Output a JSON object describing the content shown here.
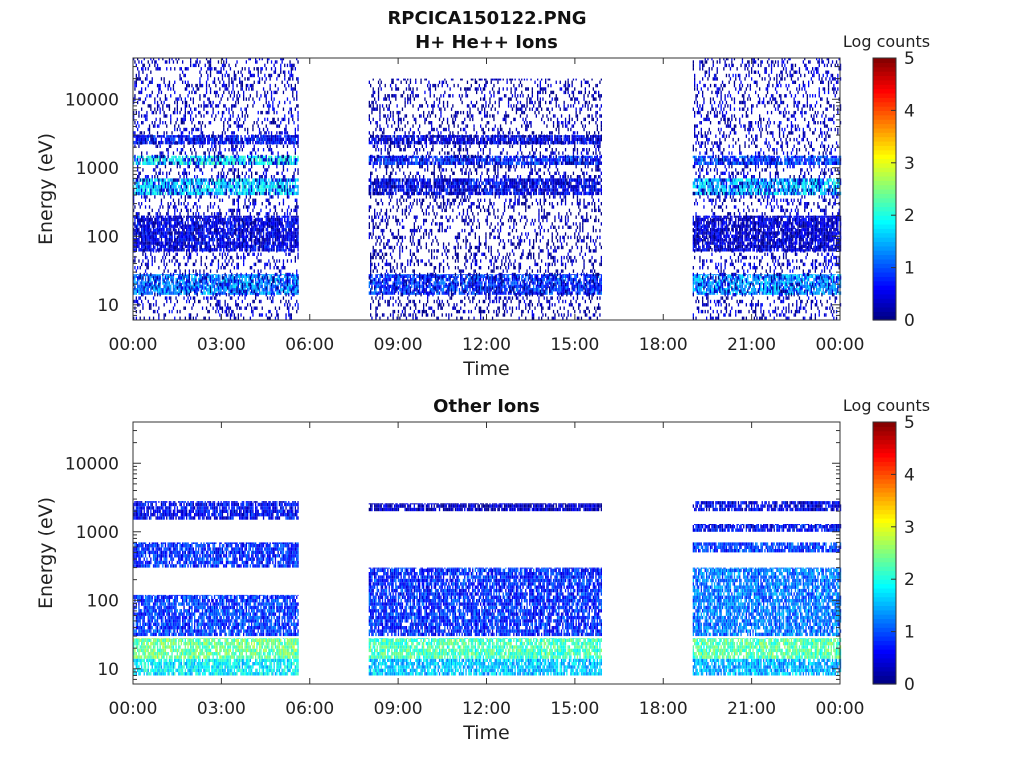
{
  "figure": {
    "filename_title": "RPCICA150122.PNG"
  },
  "chart_data": [
    {
      "type": "heatmap",
      "title": "H+ He++ Ions",
      "xlabel": "Time",
      "ylabel": "Energy (eV)",
      "x_ticks": [
        "00:00",
        "03:00",
        "06:00",
        "09:00",
        "12:00",
        "15:00",
        "18:00",
        "21:00",
        "00:00"
      ],
      "x_range_hours": [
        0,
        24
      ],
      "y_scale": "log",
      "y_ticks": [
        10,
        100,
        1000,
        10000
      ],
      "y_tick_labels": [
        "10",
        "100",
        "1000",
        "10000"
      ],
      "y_range": [
        6,
        40000
      ],
      "colorbar": {
        "label": "Log counts",
        "range": [
          0,
          5
        ],
        "ticks": [
          "0",
          "1",
          "2",
          "3",
          "4",
          "5"
        ],
        "colormap": "jet"
      },
      "data_gaps_hours": [
        [
          5.6,
          8.0
        ],
        [
          15.9,
          19.0
        ]
      ],
      "intervals": [
        {
          "start_hour": 0.0,
          "end_hour": 5.6,
          "bands": [
            {
              "e_min": 14,
              "e_max": 28,
              "level": 1.3
            },
            {
              "e_min": 400,
              "e_max": 700,
              "level": 1.7
            },
            {
              "e_min": 1100,
              "e_max": 1500,
              "level": 1.9
            },
            {
              "e_min": 2200,
              "e_max": 3000,
              "level": 0.7
            },
            {
              "e_min": 60,
              "e_max": 200,
              "level": 0.5
            },
            {
              "e_min": 6,
              "e_max": 40000,
              "level": 0.3
            }
          ]
        },
        {
          "start_hour": 8.0,
          "end_hour": 15.9,
          "bands": [
            {
              "e_min": 14,
              "e_max": 28,
              "level": 0.9
            },
            {
              "e_min": 400,
              "e_max": 700,
              "level": 0.6
            },
            {
              "e_min": 1100,
              "e_max": 1500,
              "level": 0.8
            },
            {
              "e_min": 2200,
              "e_max": 3000,
              "level": 0.5
            },
            {
              "e_min": 6,
              "e_max": 20000,
              "level": 0.15
            }
          ]
        },
        {
          "start_hour": 19.0,
          "end_hour": 24.0,
          "bands": [
            {
              "e_min": 14,
              "e_max": 28,
              "level": 1.4
            },
            {
              "e_min": 400,
              "e_max": 700,
              "level": 1.6
            },
            {
              "e_min": 1100,
              "e_max": 1500,
              "level": 1.0
            },
            {
              "e_min": 60,
              "e_max": 200,
              "level": 0.4
            },
            {
              "e_min": 6,
              "e_max": 40000,
              "level": 0.3
            }
          ]
        }
      ]
    },
    {
      "type": "heatmap",
      "title": "Other Ions",
      "xlabel": "Time",
      "ylabel": "Energy (eV)",
      "x_ticks": [
        "00:00",
        "03:00",
        "06:00",
        "09:00",
        "12:00",
        "15:00",
        "18:00",
        "21:00",
        "00:00"
      ],
      "x_range_hours": [
        0,
        24
      ],
      "y_scale": "log",
      "y_ticks": [
        10,
        100,
        1000,
        10000
      ],
      "y_tick_labels": [
        "10",
        "100",
        "1000",
        "10000"
      ],
      "y_range": [
        6,
        40000
      ],
      "colorbar": {
        "label": "Log counts",
        "range": [
          0,
          5
        ],
        "ticks": [
          "0",
          "1",
          "2",
          "3",
          "4",
          "5"
        ],
        "colormap": "jet"
      },
      "data_gaps_hours": [
        [
          5.6,
          8.0
        ],
        [
          15.9,
          19.0
        ]
      ],
      "intervals": [
        {
          "start_hour": 0.0,
          "end_hour": 5.6,
          "bands": [
            {
              "e_min": 14,
              "e_max": 28,
              "level": 2.4
            },
            {
              "e_min": 8,
              "e_max": 14,
              "level": 1.8
            },
            {
              "e_min": 30,
              "e_max": 120,
              "level": 0.9
            },
            {
              "e_min": 300,
              "e_max": 700,
              "level": 0.8
            },
            {
              "e_min": 1500,
              "e_max": 2800,
              "level": 0.6
            }
          ]
        },
        {
          "start_hour": 8.0,
          "end_hour": 15.9,
          "bands": [
            {
              "e_min": 14,
              "e_max": 28,
              "level": 2.2
            },
            {
              "e_min": 8,
              "e_max": 14,
              "level": 1.6
            },
            {
              "e_min": 30,
              "e_max": 300,
              "level": 0.8
            },
            {
              "e_min": 2000,
              "e_max": 2600,
              "level": 0.3
            }
          ]
        },
        {
          "start_hour": 19.0,
          "end_hour": 24.0,
          "bands": [
            {
              "e_min": 14,
              "e_max": 28,
              "level": 2.3
            },
            {
              "e_min": 8,
              "e_max": 14,
              "level": 1.5
            },
            {
              "e_min": 30,
              "e_max": 300,
              "level": 1.2
            },
            {
              "e_min": 500,
              "e_max": 700,
              "level": 0.9
            },
            {
              "e_min": 1000,
              "e_max": 1300,
              "level": 0.6
            },
            {
              "e_min": 2000,
              "e_max": 2800,
              "level": 0.5
            }
          ]
        }
      ]
    }
  ]
}
